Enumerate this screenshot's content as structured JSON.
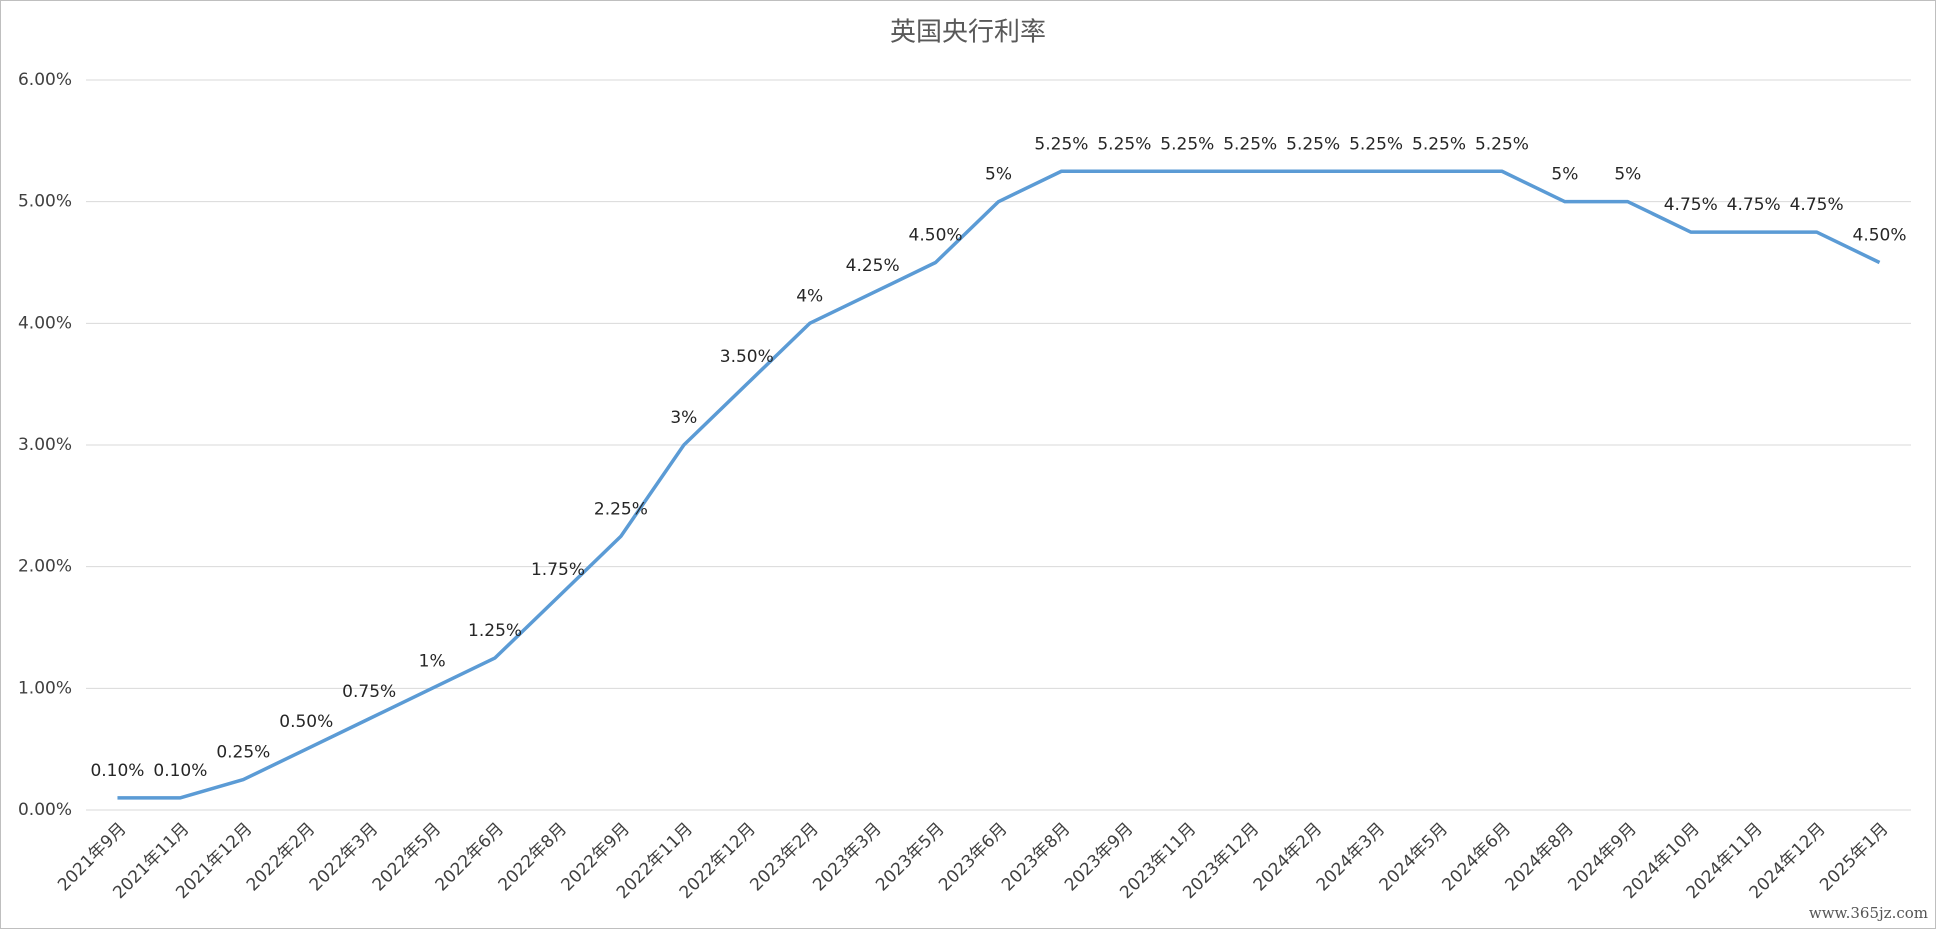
{
  "chart_data": {
    "type": "line",
    "title": "英国央行利率",
    "categories": [
      "2021年9月",
      "2021年11月",
      "2021年12月",
      "2022年2月",
      "2022年3月",
      "2022年5月",
      "2022年6月",
      "2022年8月",
      "2022年9月",
      "2022年11月",
      "2022年12月",
      "2023年2月",
      "2023年3月",
      "2023年5月",
      "2023年6月",
      "2023年8月",
      "2023年9月",
      "2023年11月",
      "2023年12月",
      "2024年2月",
      "2024年3月",
      "2024年5月",
      "2024年6月",
      "2024年8月",
      "2024年9月",
      "2024年10月",
      "2024年11月",
      "2024年12月",
      "2025年1月"
    ],
    "values": [
      0.1,
      0.1,
      0.25,
      0.5,
      0.75,
      1,
      1.25,
      1.75,
      2.25,
      3,
      3.5,
      4,
      4.25,
      4.5,
      5,
      5.25,
      5.25,
      5.25,
      5.25,
      5.25,
      5.25,
      5.25,
      5.25,
      5,
      5,
      4.75,
      4.75,
      4.75,
      4.5
    ],
    "value_labels": [
      "0.10%",
      "0.10%",
      "0.25%",
      "0.50%",
      "0.75%",
      "1%",
      "1.25%",
      "1.75%",
      "2.25%",
      "3%",
      "3.50%",
      "4%",
      "4.25%",
      "4.50%",
      "5%",
      "5.25%",
      "5.25%",
      "5.25%",
      "5.25%",
      "5.25%",
      "5.25%",
      "5.25%",
      "5.25%",
      "5%",
      "5%",
      "4.75%",
      "4.75%",
      "4.75%",
      "4.50%"
    ],
    "color": "#5b9bd5",
    "ylim": [
      0,
      6
    ],
    "yticks": [
      {
        "value": 0,
        "label": "0.00%"
      },
      {
        "value": 1,
        "label": "1.00%"
      },
      {
        "value": 2,
        "label": "2.00%"
      },
      {
        "value": 3,
        "label": "3.00%"
      },
      {
        "value": 4,
        "label": "4.00%"
      },
      {
        "value": 5,
        "label": "5.00%"
      },
      {
        "value": 6,
        "label": "6.00%"
      }
    ],
    "grid": true,
    "watermark": "www.365jz.com"
  }
}
